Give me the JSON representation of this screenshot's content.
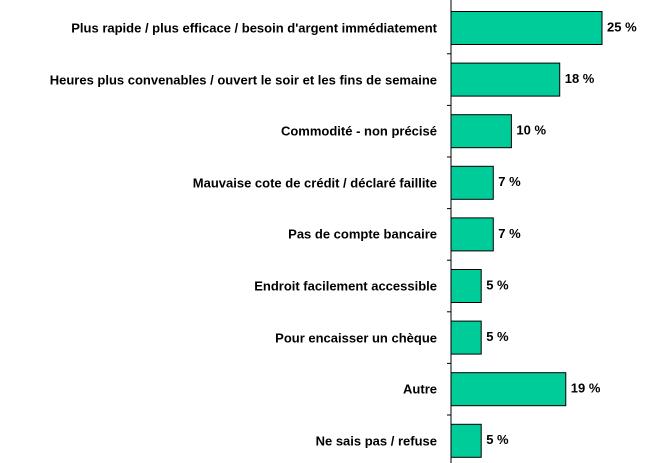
{
  "chart_data": {
    "type": "bar",
    "orientation": "horizontal",
    "categories": [
      "Plus rapide / plus efficace / besoin d'argent immédiatement",
      "Heures plus convenables / ouvert le soir et les fins de semaine",
      "Commodité - non précisé",
      "Mauvaise cote de crédit / déclaré faillite",
      "Pas de compte bancaire",
      "Endroit facilement accessible",
      "Pour encaisser un chèque",
      "Autre",
      "Ne sais pas / refuse"
    ],
    "values": [
      25,
      18,
      10,
      7,
      7,
      5,
      5,
      19,
      5
    ],
    "value_labels": [
      "25 %",
      "18 %",
      "10 %",
      "7 %",
      "7 %",
      "5 %",
      "5 %",
      "19 %",
      "5 %"
    ],
    "color": "#00cc99"
  }
}
